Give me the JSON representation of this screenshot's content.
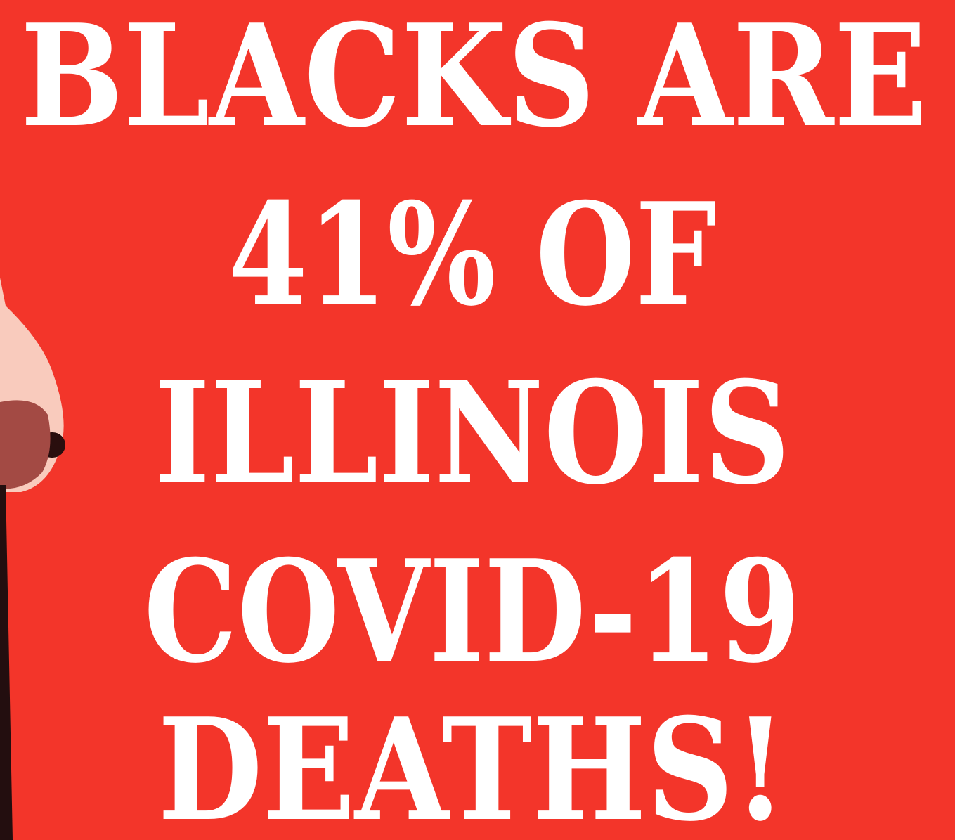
{
  "poster": {
    "lines": [
      "BLACKS ARE",
      "41% OF",
      "ILLINOIS",
      "COVID-19",
      "DEATHS!"
    ]
  }
}
